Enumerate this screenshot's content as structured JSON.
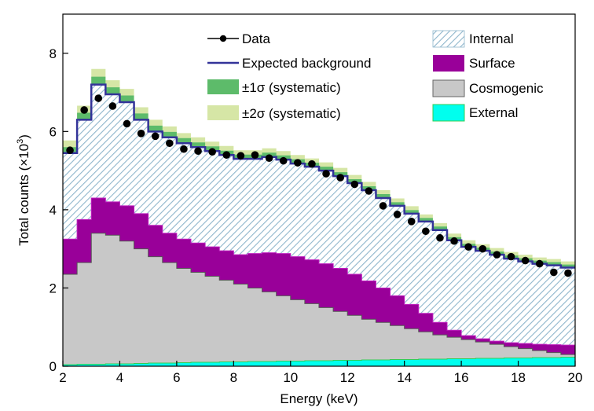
{
  "colors": {
    "internal": "#8fb6cc",
    "surface": "#990099",
    "cosmogenic": "#c8c8c8",
    "external": "#00ffee",
    "external_edge": "#33cc55",
    "expected_background": "#333399",
    "sigma1": "#5dbb6a",
    "sigma2": "#d6e6a6",
    "data": "#000000"
  },
  "chart_data": {
    "type": "area",
    "xlabel": "Energy (keV)",
    "ylabel": "Total counts (×10",
    "ylabel_sup": "3",
    "ylabel_close": ")",
    "xlim": [
      2,
      20
    ],
    "ylim": [
      0,
      9
    ],
    "xticks": [
      2,
      4,
      6,
      8,
      10,
      12,
      14,
      16,
      18,
      20
    ],
    "yticks": [
      0,
      2,
      4,
      6,
      8
    ],
    "bin_edges": [
      2.0,
      2.5,
      3.0,
      3.5,
      4.0,
      4.5,
      5.0,
      5.5,
      6.0,
      6.5,
      7.0,
      7.5,
      8.0,
      8.5,
      9.0,
      9.5,
      10.0,
      10.5,
      11.0,
      11.5,
      12.0,
      12.5,
      13.0,
      13.5,
      14.0,
      14.5,
      15.0,
      15.5,
      16.0,
      16.5,
      17.0,
      17.5,
      18.0,
      18.5,
      19.0,
      19.5,
      20.0
    ],
    "legend": {
      "data_label": "Data",
      "expected_label": "Expected background",
      "sigma1_label": "±1σ (systematic)",
      "sigma2_label": "±2σ (systematic)",
      "internal_label": "Internal",
      "surface_label": "Surface",
      "cosmogenic_label": "Cosmogenic",
      "external_label": "External"
    },
    "series": [
      {
        "name": "External",
        "values": [
          0.04,
          0.05,
          0.05,
          0.06,
          0.06,
          0.07,
          0.08,
          0.08,
          0.09,
          0.1,
          0.1,
          0.11,
          0.11,
          0.12,
          0.12,
          0.13,
          0.13,
          0.14,
          0.14,
          0.15,
          0.15,
          0.16,
          0.16,
          0.17,
          0.17,
          0.18,
          0.18,
          0.19,
          0.19,
          0.2,
          0.2,
          0.21,
          0.21,
          0.22,
          0.22,
          0.23
        ]
      },
      {
        "name": "Cosmogenic",
        "values": [
          2.35,
          2.65,
          3.4,
          3.35,
          3.2,
          3.0,
          2.8,
          2.65,
          2.5,
          2.4,
          2.3,
          2.2,
          2.1,
          2.0,
          1.9,
          1.8,
          1.7,
          1.6,
          1.5,
          1.4,
          1.3,
          1.2,
          1.12,
          1.04,
          0.96,
          0.88,
          0.8,
          0.74,
          0.68,
          0.62,
          0.56,
          0.5,
          0.45,
          0.4,
          0.35,
          0.3
        ]
      },
      {
        "name": "Surface",
        "values": [
          3.25,
          3.75,
          4.3,
          4.2,
          4.1,
          3.9,
          3.6,
          3.4,
          3.25,
          3.15,
          3.05,
          2.95,
          2.85,
          2.88,
          2.9,
          2.88,
          2.8,
          2.72,
          2.62,
          2.5,
          2.35,
          2.18,
          2.0,
          1.8,
          1.58,
          1.35,
          1.12,
          0.92,
          0.78,
          0.7,
          0.64,
          0.6,
          0.58,
          0.56,
          0.55,
          0.54
        ]
      },
      {
        "name": "Expected background",
        "values": [
          5.45,
          6.3,
          7.2,
          6.95,
          6.75,
          6.3,
          6.0,
          5.85,
          5.7,
          5.6,
          5.5,
          5.4,
          5.3,
          5.3,
          5.35,
          5.28,
          5.18,
          5.1,
          5.0,
          4.86,
          4.68,
          4.5,
          4.3,
          4.1,
          3.9,
          3.7,
          3.48,
          3.22,
          3.05,
          2.95,
          2.85,
          2.75,
          2.68,
          2.62,
          2.58,
          2.52
        ]
      }
    ],
    "sigma1_halfwidth": [
      0.15,
      0.18,
      0.2,
      0.18,
      0.17,
      0.16,
      0.15,
      0.14,
      0.13,
      0.12,
      0.12,
      0.11,
      0.11,
      0.11,
      0.11,
      0.11,
      0.11,
      0.1,
      0.1,
      0.1,
      0.1,
      0.1,
      0.1,
      0.09,
      0.09,
      0.09,
      0.09,
      0.08,
      0.08,
      0.08,
      0.08,
      0.08,
      0.08,
      0.08,
      0.08,
      0.08
    ],
    "sigma2_halfwidth": [
      0.32,
      0.36,
      0.4,
      0.36,
      0.34,
      0.32,
      0.3,
      0.28,
      0.26,
      0.25,
      0.24,
      0.23,
      0.22,
      0.22,
      0.22,
      0.22,
      0.22,
      0.21,
      0.21,
      0.21,
      0.21,
      0.21,
      0.2,
      0.19,
      0.19,
      0.18,
      0.18,
      0.17,
      0.17,
      0.17,
      0.17,
      0.17,
      0.17,
      0.16,
      0.16,
      0.16
    ],
    "data_points": {
      "x": [
        2.25,
        2.75,
        3.25,
        3.75,
        4.25,
        4.75,
        5.25,
        5.75,
        6.25,
        6.75,
        7.25,
        7.75,
        8.25,
        8.75,
        9.25,
        9.75,
        10.25,
        10.75,
        11.25,
        11.75,
        12.25,
        12.75,
        13.25,
        13.75,
        14.25,
        14.75,
        15.25,
        15.75,
        16.25,
        16.75,
        17.25,
        17.75,
        18.25,
        18.75,
        19.25,
        19.75
      ],
      "y": [
        5.52,
        6.55,
        6.85,
        6.65,
        6.2,
        5.95,
        5.88,
        5.7,
        5.55,
        5.5,
        5.48,
        5.4,
        5.38,
        5.4,
        5.32,
        5.25,
        5.2,
        5.17,
        4.92,
        4.82,
        4.65,
        4.48,
        4.1,
        3.88,
        3.7,
        3.45,
        3.28,
        3.2,
        3.05,
        3.0,
        2.85,
        2.8,
        2.7,
        2.62,
        2.4,
        2.38
      ]
    }
  }
}
